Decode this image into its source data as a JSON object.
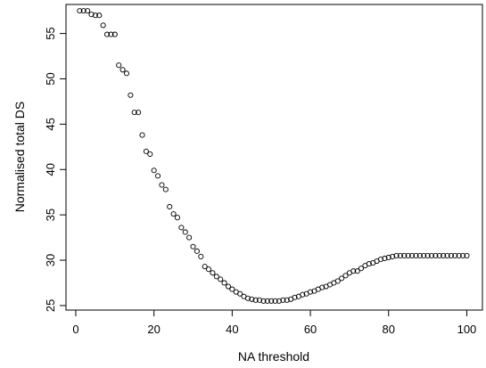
{
  "chart_data": {
    "type": "scatter",
    "title": "",
    "xlabel": "NA threshold",
    "ylabel": "Normalised total DS",
    "xlim": [
      -2.5,
      104
    ],
    "ylim": [
      24.5,
      58.2
    ],
    "x_ticks": [
      0,
      20,
      40,
      60,
      80,
      100
    ],
    "y_ticks": [
      25,
      30,
      35,
      40,
      45,
      50,
      55
    ],
    "grid": false,
    "legend": "none",
    "marker": "open-circle",
    "series": [
      {
        "x": [
          1,
          2,
          3,
          4,
          5,
          6,
          7,
          8,
          9,
          10,
          11,
          12,
          13,
          14,
          15,
          16,
          17,
          18,
          19,
          20,
          21,
          22,
          23,
          24,
          25,
          26,
          27,
          28,
          29,
          30,
          31,
          32,
          33,
          34,
          35,
          36,
          37,
          38,
          39,
          40,
          41,
          42,
          43,
          44,
          45,
          46,
          47,
          48,
          49,
          50,
          51,
          52,
          53,
          54,
          55,
          56,
          57,
          58,
          59,
          60,
          61,
          62,
          63,
          64,
          65,
          66,
          67,
          68,
          69,
          70,
          71,
          72,
          73,
          74,
          75,
          76,
          77,
          78,
          79,
          80,
          81,
          82,
          83,
          84,
          85,
          86,
          87,
          88,
          89,
          90,
          91,
          92,
          93,
          94,
          95,
          96,
          97,
          98,
          99,
          100
        ],
        "y": [
          57.5,
          57.5,
          57.5,
          57.1,
          57.0,
          57.0,
          55.9,
          54.9,
          54.9,
          54.9,
          51.5,
          51.0,
          50.6,
          48.2,
          46.3,
          46.3,
          43.8,
          42.0,
          41.7,
          39.9,
          39.3,
          38.3,
          37.8,
          35.9,
          35.1,
          34.7,
          33.6,
          33.1,
          32.5,
          31.5,
          31.0,
          30.4,
          29.3,
          29.0,
          28.6,
          28.2,
          27.9,
          27.5,
          27.1,
          26.8,
          26.5,
          26.3,
          26.0,
          25.8,
          25.7,
          25.6,
          25.6,
          25.5,
          25.5,
          25.5,
          25.5,
          25.5,
          25.6,
          25.6,
          25.7,
          25.9,
          26.0,
          26.2,
          26.3,
          26.5,
          26.6,
          26.8,
          27.0,
          27.1,
          27.3,
          27.5,
          27.7,
          28.0,
          28.3,
          28.6,
          28.8,
          28.8,
          29.1,
          29.4,
          29.6,
          29.7,
          29.9,
          30.1,
          30.2,
          30.3,
          30.4,
          30.5,
          30.5,
          30.5,
          30.5,
          30.5,
          30.5,
          30.5,
          30.5,
          30.5,
          30.5,
          30.5,
          30.5,
          30.5,
          30.5,
          30.5,
          30.5,
          30.5,
          30.5,
          30.5
        ]
      }
    ]
  }
}
